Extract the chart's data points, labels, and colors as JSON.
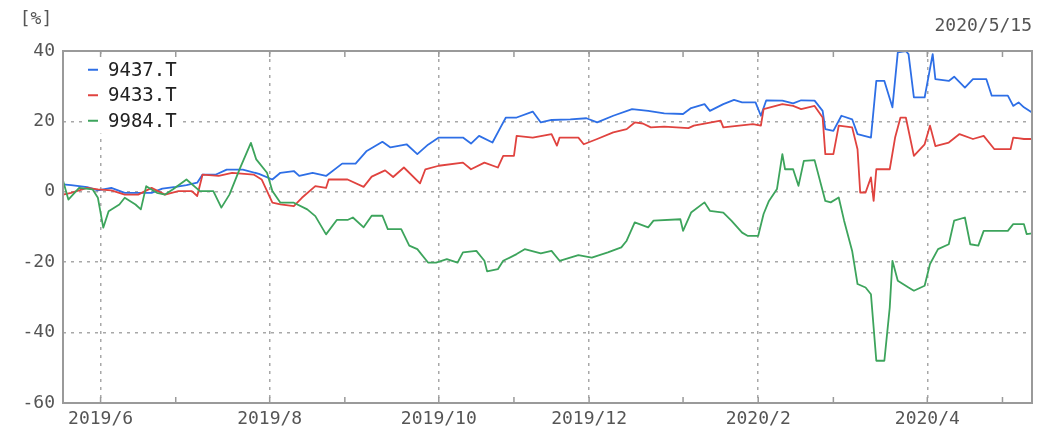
{
  "chart_data": {
    "type": "line",
    "ylabel": "[%]",
    "annotations": [
      "2020/5/15"
    ],
    "xlim": [
      "2019-05-20",
      "2020-05-15"
    ],
    "xticks": [
      {
        "value": "2019-06-03",
        "label": "2019/6"
      },
      {
        "value": "2019-07-01",
        "label": null
      },
      {
        "value": "2019-08-05",
        "label": "2019/8"
      },
      {
        "value": "2019-09-02",
        "label": null
      },
      {
        "value": "2019-10-07",
        "label": "2019/10"
      },
      {
        "value": "2019-11-04",
        "label": null
      },
      {
        "value": "2019-12-02",
        "label": "2019/12"
      },
      {
        "value": "2020-01-06",
        "label": null
      },
      {
        "value": "2020-02-03",
        "label": "2020/2"
      },
      {
        "value": "2020-03-02",
        "label": null
      },
      {
        "value": "2020-04-06",
        "label": "2020/4"
      },
      {
        "value": "2020-05-04",
        "label": null
      }
    ],
    "ylim": [
      -60,
      40
    ],
    "yticks": [
      -60,
      -40,
      -20,
      0,
      20,
      40
    ],
    "grid": true,
    "legend": "top left",
    "marker": "none",
    "series": [
      {
        "name": "9437.T",
        "color": "#2e6fe6",
        "x": [
          "2019-05-20",
          "2019-05-23",
          "2019-05-29",
          "2019-06-02",
          "2019-06-07",
          "2019-06-12",
          "2019-06-22",
          "2019-06-26",
          "2019-07-01",
          "2019-07-05",
          "2019-07-09",
          "2019-07-11",
          "2019-07-16",
          "2019-07-20",
          "2019-07-26",
          "2019-08-01",
          "2019-08-06",
          "2019-08-09",
          "2019-08-14",
          "2019-08-16",
          "2019-08-21",
          "2019-08-26",
          "2019-09-01",
          "2019-09-06",
          "2019-09-10",
          "2019-09-16",
          "2019-09-19",
          "2019-09-25",
          "2019-09-29",
          "2019-10-03",
          "2019-10-07",
          "2019-10-16",
          "2019-10-19",
          "2019-10-22",
          "2019-10-27",
          "2019-10-30",
          "2019-11-01",
          "2019-11-05",
          "2019-11-11",
          "2019-11-14",
          "2019-11-18",
          "2019-11-25",
          "2019-12-01",
          "2019-12-05",
          "2019-12-11",
          "2019-12-18",
          "2019-12-24",
          "2019-12-30",
          "2020-01-06",
          "2020-01-09",
          "2020-01-14",
          "2020-01-16",
          "2020-01-21",
          "2020-01-25",
          "2020-01-28",
          "2020-02-02",
          "2020-02-04",
          "2020-02-06",
          "2020-02-12",
          "2020-02-16",
          "2020-02-19",
          "2020-02-24",
          "2020-02-27",
          "2020-02-28",
          "2020-03-02",
          "2020-03-05",
          "2020-03-09",
          "2020-03-11",
          "2020-03-16",
          "2020-03-18",
          "2020-03-21",
          "2020-03-24",
          "2020-03-26",
          "2020-03-29",
          "2020-03-30",
          "2020-04-01",
          "2020-04-05",
          "2020-04-08",
          "2020-04-09",
          "2020-04-14",
          "2020-04-16",
          "2020-04-20",
          "2020-04-23",
          "2020-04-28",
          "2020-04-30",
          "2020-05-06",
          "2020-05-08",
          "2020-05-10",
          "2020-05-12",
          "2020-05-15"
        ],
        "values": [
          2.1,
          1.9,
          1.3,
          0.4,
          1.1,
          -0.3,
          -0.3,
          0.9,
          1.4,
          1.9,
          2.6,
          4.9,
          4.9,
          6.3,
          6.3,
          5.1,
          3.5,
          5.4,
          5.9,
          4.5,
          5.4,
          4.5,
          8.0,
          8.0,
          11.5,
          14.2,
          12.6,
          13.5,
          10.7,
          13.4,
          15.4,
          15.4,
          13.7,
          15.9,
          14.0,
          18.3,
          21.1,
          21.1,
          22.8,
          19.7,
          20.4,
          20.6,
          20.9,
          19.7,
          21.6,
          23.5,
          23.0,
          22.3,
          22.1,
          23.8,
          24.9,
          23.0,
          24.9,
          26.1,
          25.4,
          25.4,
          21.6,
          26.0,
          25.9,
          25.1,
          26.0,
          25.9,
          23.0,
          17.8,
          17.3,
          21.6,
          20.6,
          16.4,
          15.4,
          31.5,
          31.5,
          24.0,
          39.6,
          40,
          39.1,
          26.8,
          26.8,
          39.1,
          32.0,
          31.5,
          32.7,
          29.6,
          32.0,
          32.0,
          27.3,
          27.3,
          24.4,
          25.4,
          24.0,
          22.5
        ]
      },
      {
        "name": "9433.T",
        "color": "#e0433f",
        "x": [
          "2019-05-20",
          "2019-05-23",
          "2019-05-29",
          "2019-06-02",
          "2019-06-07",
          "2019-06-12",
          "2019-06-17",
          "2019-06-22",
          "2019-06-27",
          "2019-07-02",
          "2019-07-07",
          "2019-07-09",
          "2019-07-11",
          "2019-07-17",
          "2019-07-22",
          "2019-07-30",
          "2019-08-02",
          "2019-08-06",
          "2019-08-09",
          "2019-08-14",
          "2019-08-17",
          "2019-08-22",
          "2019-08-26",
          "2019-08-27",
          "2019-09-03",
          "2019-09-09",
          "2019-09-12",
          "2019-09-17",
          "2019-09-20",
          "2019-09-24",
          "2019-09-30",
          "2019-10-02",
          "2019-10-07",
          "2019-10-16",
          "2019-10-19",
          "2019-10-24",
          "2019-10-29",
          "2019-10-31",
          "2019-11-04",
          "2019-11-05",
          "2019-11-11",
          "2019-11-18",
          "2019-11-20",
          "2019-11-21",
          "2019-11-28",
          "2019-11-30",
          "2019-12-05",
          "2019-12-11",
          "2019-12-16",
          "2019-12-19",
          "2019-12-22",
          "2019-12-25",
          "2019-12-30",
          "2020-01-08",
          "2020-01-10",
          "2020-01-20",
          "2020-01-21",
          "2020-02-01",
          "2020-02-04",
          "2020-02-05",
          "2020-02-12",
          "2020-02-16",
          "2020-02-19",
          "2020-02-24",
          "2020-02-27",
          "2020-02-28",
          "2020-03-02",
          "2020-03-04",
          "2020-03-09",
          "2020-03-11",
          "2020-03-12",
          "2020-03-14",
          "2020-03-16",
          "2020-03-17",
          "2020-03-18",
          "2020-03-23",
          "2020-03-25",
          "2020-03-27",
          "2020-03-29",
          "2020-04-01",
          "2020-04-05",
          "2020-04-07",
          "2020-04-09",
          "2020-04-14",
          "2020-04-18",
          "2020-04-23",
          "2020-04-27",
          "2020-05-01",
          "2020-05-07",
          "2020-05-08",
          "2020-05-12",
          "2020-05-15"
        ],
        "values": [
          -0.8,
          -0.3,
          1.1,
          0.7,
          0.4,
          -0.8,
          -0.8,
          1.1,
          -0.8,
          0.2,
          0.2,
          -1.2,
          4.9,
          4.5,
          5.4,
          4.9,
          3.5,
          -3.1,
          -3.6,
          -4.1,
          -1.7,
          1.6,
          1.1,
          3.5,
          3.5,
          1.4,
          4.3,
          6.1,
          4.2,
          6.9,
          2.4,
          6.4,
          7.4,
          8.3,
          6.4,
          8.3,
          6.9,
          10.2,
          10.2,
          15.9,
          15.4,
          16.4,
          13.1,
          15.4,
          15.4,
          13.5,
          15.0,
          16.9,
          17.8,
          19.7,
          19.4,
          18.3,
          18.5,
          18.1,
          18.8,
          20.2,
          18.3,
          19.2,
          18.8,
          23.5,
          24.9,
          24.4,
          23.5,
          24.4,
          21.1,
          10.7,
          10.7,
          18.8,
          18.3,
          12.1,
          -0.2,
          -0.2,
          4.1,
          -2.6,
          6.4,
          6.4,
          15.4,
          21.1,
          21.1,
          10.2,
          13.5,
          18.8,
          13.0,
          14.0,
          16.4,
          15.0,
          15.9,
          12.1,
          12.1,
          15.4,
          15.0,
          15.0
        ]
      },
      {
        "name": "9984.T",
        "color": "#3da45c",
        "x": [
          "2019-05-20",
          "2019-05-22",
          "2019-05-26",
          "2019-05-31",
          "2019-06-02",
          "2019-06-04",
          "2019-06-06",
          "2019-06-10",
          "2019-06-12",
          "2019-06-16",
          "2019-06-18",
          "2019-06-20",
          "2019-06-24",
          "2019-06-27",
          "2019-06-30",
          "2019-07-05",
          "2019-07-10",
          "2019-07-15",
          "2019-07-18",
          "2019-07-21",
          "2019-07-25",
          "2019-07-29",
          "2019-07-31",
          "2019-08-04",
          "2019-08-06",
          "2019-08-09",
          "2019-08-14",
          "2019-08-19",
          "2019-08-22",
          "2019-08-26",
          "2019-08-30",
          "2019-09-03",
          "2019-09-05",
          "2019-09-09",
          "2019-09-12",
          "2019-09-16",
          "2019-09-18",
          "2019-09-23",
          "2019-09-26",
          "2019-09-29",
          "2019-10-03",
          "2019-10-06",
          "2019-10-10",
          "2019-10-14",
          "2019-10-16",
          "2019-10-21",
          "2019-10-24",
          "2019-10-25",
          "2019-10-29",
          "2019-10-31",
          "2019-11-05",
          "2019-11-08",
          "2019-11-14",
          "2019-11-18",
          "2019-11-21",
          "2019-11-28",
          "2019-12-03",
          "2019-12-09",
          "2019-12-14",
          "2019-12-16",
          "2019-12-19",
          "2019-12-24",
          "2019-12-26",
          "2020-01-05",
          "2020-01-06",
          "2020-01-09",
          "2020-01-14",
          "2020-01-16",
          "2020-01-21",
          "2020-01-24",
          "2020-01-28",
          "2020-01-30",
          "2020-02-03",
          "2020-02-05",
          "2020-02-07",
          "2020-02-10",
          "2020-02-12",
          "2020-02-13",
          "2020-02-16",
          "2020-02-18",
          "2020-02-20",
          "2020-02-24",
          "2020-02-28",
          "2020-03-01",
          "2020-03-04",
          "2020-03-06",
          "2020-03-09",
          "2020-03-11",
          "2020-03-14",
          "2020-03-16",
          "2020-03-18",
          "2020-03-21",
          "2020-03-23",
          "2020-03-24",
          "2020-03-26",
          "2020-03-30",
          "2020-04-01",
          "2020-04-05",
          "2020-04-07",
          "2020-04-10",
          "2020-04-14",
          "2020-04-16",
          "2020-04-20",
          "2020-04-22",
          "2020-04-25",
          "2020-04-27",
          "2020-05-06",
          "2020-05-08",
          "2020-05-12",
          "2020-05-13",
          "2020-05-15"
        ],
        "values": [
          3.2,
          -2.2,
          1.1,
          0.7,
          -1.7,
          -10.2,
          -5.5,
          -3.6,
          -1.7,
          -3.6,
          -5.0,
          1.6,
          -0.3,
          -0.8,
          0.7,
          3.5,
          0.2,
          0.2,
          -4.5,
          -0.8,
          6.8,
          13.9,
          9.2,
          5.4,
          0.2,
          -3.1,
          -3.1,
          -5.0,
          -6.9,
          -12.1,
          -8.0,
          -8.0,
          -7.3,
          -10.1,
          -6.8,
          -6.8,
          -10.6,
          -10.6,
          -15.3,
          -16.3,
          -20.1,
          -20.1,
          -19.1,
          -20.1,
          -17.2,
          -16.8,
          -19.6,
          -22.6,
          -22.0,
          -19.6,
          -17.7,
          -16.3,
          -17.5,
          -16.8,
          -19.6,
          -18.0,
          -18.7,
          -17.2,
          -15.8,
          -13.9,
          -8.7,
          -10.1,
          -8.2,
          -7.8,
          -11.1,
          -5.9,
          -3.0,
          -5.4,
          -5.9,
          -8.2,
          -11.6,
          -12.5,
          -12.5,
          -6.3,
          -2.6,
          0.8,
          10.7,
          6.4,
          6.4,
          1.7,
          8.8,
          9.0,
          -2.6,
          -3.0,
          -1.6,
          -8.2,
          -16.8,
          -26.2,
          -27.2,
          -29.1,
          -48.0,
          -48.0,
          -32.9,
          -19.6,
          -25.3,
          -27.2,
          -28.1,
          -26.7,
          -20.5,
          -16.3,
          -14.9,
          -8.2,
          -7.3,
          -14.9,
          -15.3,
          -11.1,
          -11.1,
          -9.2,
          -9.2,
          -12.0,
          -11.8
        ]
      }
    ]
  }
}
